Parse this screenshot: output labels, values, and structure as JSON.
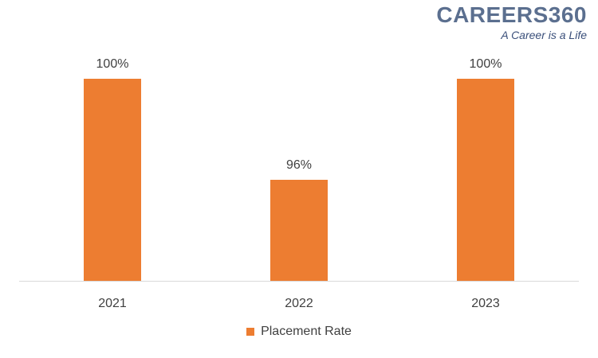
{
  "logo": {
    "name": "CAREERS360",
    "tagline": "A Career is a Life"
  },
  "colors": {
    "bar": "#ed7d31",
    "axis": "#d9d9d9",
    "text": "#404040"
  },
  "chart_data": {
    "type": "bar",
    "categories": [
      "2021",
      "2022",
      "2023"
    ],
    "series": [
      {
        "name": "Placement Rate",
        "values": [
          100,
          96,
          100
        ]
      }
    ],
    "data_labels": [
      "100%",
      "96%",
      "100%"
    ],
    "ylim": [
      92,
      100
    ],
    "grid": false,
    "legend_position": "bottom"
  }
}
